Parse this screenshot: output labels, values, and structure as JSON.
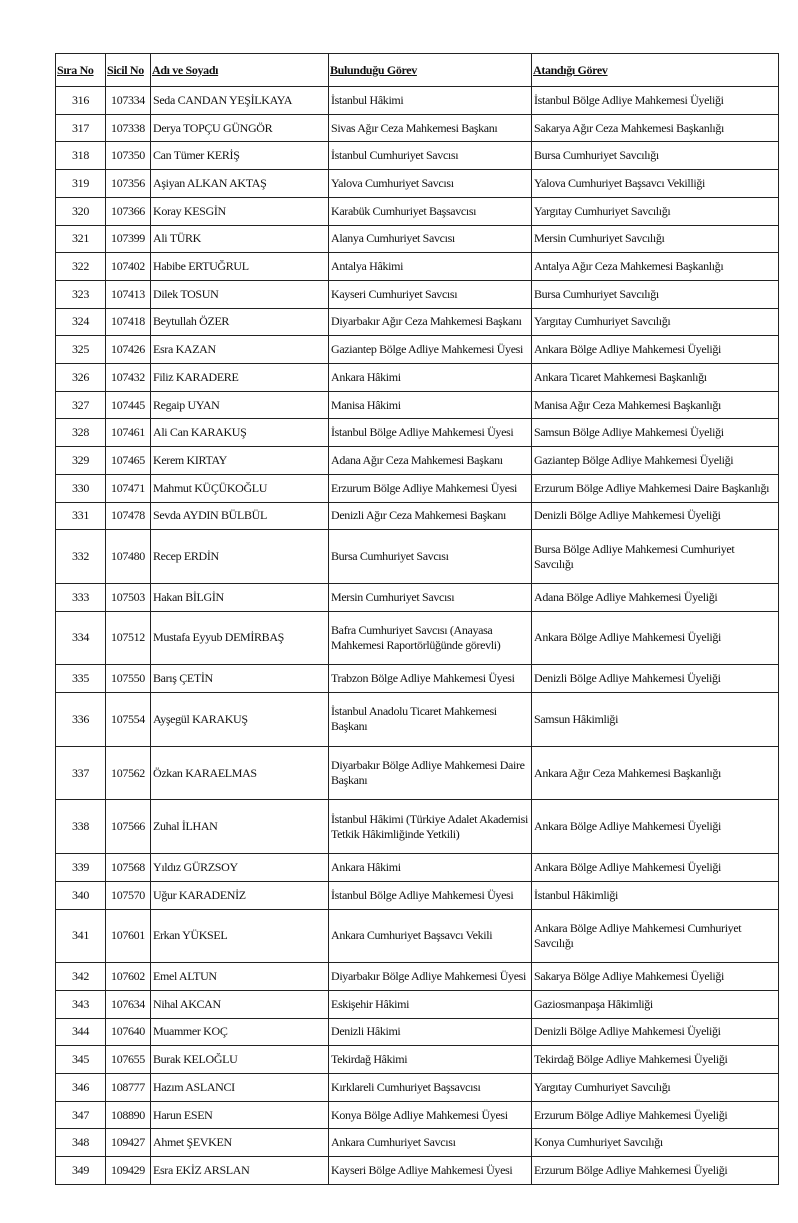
{
  "headers": [
    "Sıra No",
    "Sicil No",
    "Adı ve Soyadı",
    "Bulunduğu Görev",
    "Atandığı Görev"
  ],
  "rows": [
    [
      "316",
      "107334",
      "Seda CANDAN YEŞİLKAYA",
      "İstanbul Hâkimi",
      "İstanbul Bölge Adliye Mahkemesi Üyeliği"
    ],
    [
      "317",
      "107338",
      "Derya TOPÇU GÜNGÖR",
      "Sivas Ağır Ceza Mahkemesi Başkanı",
      "Sakarya Ağır Ceza Mahkemesi Başkanlığı"
    ],
    [
      "318",
      "107350",
      "Can Tümer KERİŞ",
      "İstanbul Cumhuriyet Savcısı",
      "Bursa Cumhuriyet Savcılığı"
    ],
    [
      "319",
      "107356",
      "Aşiyan ALKAN AKTAŞ",
      "Yalova Cumhuriyet Savcısı",
      "Yalova Cumhuriyet Başsavcı Vekilliği"
    ],
    [
      "320",
      "107366",
      "Koray KESGİN",
      "Karabük Cumhuriyet Başsavcısı",
      "Yargıtay Cumhuriyet Savcılığı"
    ],
    [
      "321",
      "107399",
      "Ali TÜRK",
      "Alanya Cumhuriyet Savcısı",
      "Mersin Cumhuriyet Savcılığı"
    ],
    [
      "322",
      "107402",
      "Habibe ERTUĞRUL",
      "Antalya Hâkimi",
      "Antalya Ağır Ceza Mahkemesi Başkanlığı"
    ],
    [
      "323",
      "107413",
      "Dilek TOSUN",
      "Kayseri Cumhuriyet Savcısı",
      "Bursa Cumhuriyet Savcılığı"
    ],
    [
      "324",
      "107418",
      "Beytullah ÖZER",
      "Diyarbakır Ağır Ceza Mahkemesi Başkanı",
      "Yargıtay Cumhuriyet Savcılığı"
    ],
    [
      "325",
      "107426",
      "Esra KAZAN",
      "Gaziantep Bölge Adliye Mahkemesi Üyesi",
      "Ankara Bölge Adliye Mahkemesi Üyeliği"
    ],
    [
      "326",
      "107432",
      "Filiz KARADERE",
      "Ankara Hâkimi",
      "Ankara Ticaret Mahkemesi Başkanlığı"
    ],
    [
      "327",
      "107445",
      "Regaip UYAN",
      "Manisa Hâkimi",
      "Manisa Ağır Ceza Mahkemesi Başkanlığı"
    ],
    [
      "328",
      "107461",
      "Ali Can KARAKUŞ",
      "İstanbul Bölge Adliye Mahkemesi Üyesi",
      "Samsun Bölge Adliye Mahkemesi Üyeliği"
    ],
    [
      "329",
      "107465",
      "Kerem KIRTAY",
      "Adana Ağır Ceza Mahkemesi Başkanı",
      "Gaziantep Bölge Adliye Mahkemesi Üyeliği"
    ],
    [
      "330",
      "107471",
      "Mahmut KÜÇÜKOĞLU",
      "Erzurum Bölge Adliye Mahkemesi Üyesi",
      "Erzurum Bölge Adliye Mahkemesi Daire Başkanlığı"
    ],
    [
      "331",
      "107478",
      "Sevda AYDIN BÜLBÜL",
      "Denizli Ağır Ceza Mahkemesi Başkanı",
      "Denizli Bölge Adliye Mahkemesi Üyeliği"
    ],
    [
      "332",
      "107480",
      "Recep ERDİN",
      "Bursa Cumhuriyet Savcısı",
      "Bursa Bölge Adliye Mahkemesi Cumhuriyet Savcılığı"
    ],
    [
      "333",
      "107503",
      "Hakan BİLGİN",
      "Mersin Cumhuriyet Savcısı",
      "Adana Bölge Adliye Mahkemesi Üyeliği"
    ],
    [
      "334",
      "107512",
      "Mustafa Eyyub DEMİRBAŞ",
      "Bafra Cumhuriyet Savcısı (Anayasa Mahkemesi Raportörlüğünde görevli)",
      "Ankara Bölge Adliye Mahkemesi Üyeliği"
    ],
    [
      "335",
      "107550",
      "Barış ÇETİN",
      "Trabzon Bölge Adliye Mahkemesi Üyesi",
      "Denizli Bölge Adliye Mahkemesi Üyeliği"
    ],
    [
      "336",
      "107554",
      "Ayşegül KARAKUŞ",
      "İstanbul Anadolu Ticaret Mahkemesi Başkanı",
      "Samsun Hâkimliği"
    ],
    [
      "337",
      "107562",
      "Özkan KARAELMAS",
      "Diyarbakır Bölge Adliye Mahkemesi Daire Başkanı",
      "Ankara Ağır Ceza Mahkemesi Başkanlığı"
    ],
    [
      "338",
      "107566",
      "Zuhal İLHAN",
      "İstanbul Hâkimi (Türkiye Adalet Akademisi Tetkik Hâkimliğinde Yetkili)",
      "Ankara Bölge Adliye Mahkemesi Üyeliği"
    ],
    [
      "339",
      "107568",
      "Yıldız GÜRZSOY",
      "Ankara Hâkimi",
      "Ankara Bölge Adliye Mahkemesi Üyeliği"
    ],
    [
      "340",
      "107570",
      "Uğur KARADENİZ",
      "İstanbul Bölge Adliye Mahkemesi Üyesi",
      "İstanbul Hâkimliği"
    ],
    [
      "341",
      "107601",
      "Erkan YÜKSEL",
      "Ankara Cumhuriyet Başsavcı Vekili",
      "Ankara Bölge Adliye Mahkemesi Cumhuriyet Savcılığı"
    ],
    [
      "342",
      "107602",
      "Emel ALTUN",
      "Diyarbakır Bölge Adliye Mahkemesi Üyesi",
      "Sakarya Bölge Adliye Mahkemesi Üyeliği"
    ],
    [
      "343",
      "107634",
      "Nihal AKCAN",
      "Eskişehir Hâkimi",
      "Gaziosmanpaşa Hâkimliği"
    ],
    [
      "344",
      "107640",
      "Muammer KOÇ",
      "Denizli Hâkimi",
      "Denizli Bölge Adliye Mahkemesi Üyeliği"
    ],
    [
      "345",
      "107655",
      "Burak KELOĞLU",
      "Tekirdağ Hâkimi",
      "Tekirdağ Bölge Adliye Mahkemesi Üyeliği"
    ],
    [
      "346",
      "108777",
      "Hazım ASLANCI",
      "Kırklareli Cumhuriyet Başsavcısı",
      "Yargıtay Cumhuriyet Savcılığı"
    ],
    [
      "347",
      "108890",
      "Harun ESEN",
      "Konya Bölge Adliye Mahkemesi Üyesi",
      "Erzurum Bölge Adliye Mahkemesi Üyeliği"
    ],
    [
      "348",
      "109427",
      "Ahmet ŞEVKEN",
      "Ankara Cumhuriyet Savcısı",
      "Konya Cumhuriyet Savcılığı"
    ],
    [
      "349",
      "109429",
      "Esra EKİZ ARSLAN",
      "Kayseri Bölge Adliye Mahkemesi Üyesi",
      "Erzurum Bölge Adliye Mahkemesi Üyeliği"
    ]
  ]
}
